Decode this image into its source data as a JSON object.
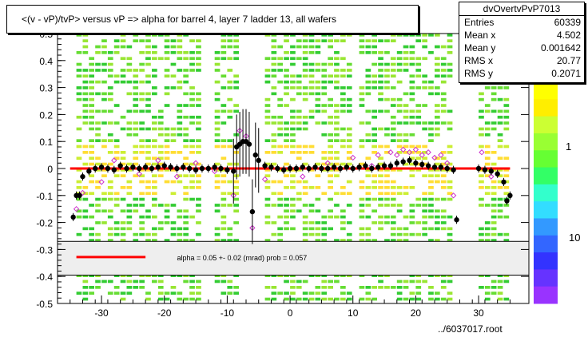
{
  "chart_data": {
    "type": "scatter",
    "title": "<(v - vP)/tvP> versus  vP => alpha for barrel 4, layer 7 ladder 13, all wafers",
    "xlim": [
      -37,
      38
    ],
    "ylim": [
      -0.5,
      0.5
    ],
    "x_ticks": [
      "-30",
      "-20",
      "-10",
      "0",
      "10",
      "20",
      "30"
    ],
    "x_tick_values": [
      -30,
      -20,
      -10,
      0,
      10,
      20,
      30
    ],
    "y_ticks": [
      "-0.5",
      "-0.4",
      "-0.3",
      "-0.2",
      "-0.1",
      "0",
      "0.1",
      "0.2",
      "0.3",
      "0.4",
      "0.5"
    ],
    "y_tick_values": [
      -0.5,
      -0.4,
      -0.3,
      -0.2,
      -0.1,
      0,
      0.1,
      0.2,
      0.3,
      0.4,
      0.5
    ],
    "color_scale_labels": [
      "1",
      "10"
    ],
    "colors": {
      "profile_points": "#000000",
      "open_markers": "#cc33cc",
      "fit_line": "#ff0000",
      "fill": "#33cc33"
    },
    "fill_bands_x": [
      [
        -34,
        -26
      ],
      [
        -26,
        -14
      ],
      [
        -12,
        -8
      ],
      [
        -4,
        10
      ],
      [
        11,
        16
      ],
      [
        16,
        26
      ],
      [
        30,
        35
      ]
    ],
    "series": [
      {
        "name": "profile",
        "x": [
          -34.5,
          -34,
          -33.5,
          -33,
          -32,
          -31,
          -30,
          -29,
          -28,
          -27,
          -26,
          -25,
          -24,
          -23,
          -22,
          -21,
          -20,
          -19,
          -18,
          -17,
          -16,
          -15,
          -14,
          -13,
          -12,
          -11,
          -10,
          -9,
          -8.5,
          -8,
          -7.5,
          -7,
          -6.5,
          -6,
          -5.5,
          -5,
          -4,
          -3,
          -2,
          -1,
          0,
          1,
          2,
          3,
          4,
          5,
          6,
          7,
          8,
          9,
          10,
          11,
          12,
          13,
          14,
          15,
          16,
          17,
          18,
          19,
          20,
          21,
          22,
          23,
          24,
          25,
          26,
          26.5,
          30,
          31,
          32,
          33,
          34,
          34.5,
          35
        ],
        "y": [
          -0.18,
          -0.1,
          -0.1,
          -0.03,
          -0.01,
          0.0,
          0.005,
          0.0,
          -0.005,
          0.01,
          0.0,
          0.005,
          0.0,
          0.005,
          0.0,
          0.005,
          0.01,
          0.005,
          0.0,
          0.005,
          0.0,
          -0.005,
          0.0,
          0.0,
          0.005,
          0.0,
          -0.005,
          -0.01,
          0.08,
          0.09,
          0.1,
          0.1,
          0.09,
          -0.16,
          0.05,
          0.03,
          0.01,
          0.005,
          0.0,
          -0.005,
          0.0,
          0.0,
          0.005,
          0.0,
          0.005,
          0.0,
          0.0,
          0.005,
          0.0,
          0.005,
          0.0,
          0.005,
          0.01,
          0.0,
          0.005,
          0.01,
          0.01,
          0.02,
          0.025,
          0.03,
          0.02,
          0.015,
          0.01,
          0.005,
          0.005,
          0.0,
          -0.005,
          -0.19,
          0.0,
          -0.005,
          -0.01,
          -0.02,
          -0.05,
          -0.12,
          -0.1
        ]
      },
      {
        "name": "open markers",
        "x": [
          -34,
          -33,
          -30,
          -28,
          -24,
          -21,
          -18,
          -15,
          -12,
          -9,
          -8,
          -7,
          -6,
          -4,
          2,
          6,
          10,
          13,
          14,
          16,
          17,
          18,
          19,
          20,
          21,
          22,
          23,
          24,
          25,
          26,
          30.5,
          32
        ],
        "y": [
          -0.15,
          -0.09,
          -0.05,
          0.03,
          -0.02,
          0.03,
          -0.03,
          0.02,
          -0.01,
          -0.1,
          0.14,
          0.12,
          -0.22,
          -0.04,
          -0.03,
          0.02,
          0.04,
          0.01,
          0.05,
          0.06,
          0.05,
          0.07,
          0.06,
          0.07,
          0.05,
          0.06,
          0.04,
          0.05,
          0.02,
          -0.1,
          0.06,
          -0.03
        ]
      }
    ],
    "fit": {
      "y": 0.0,
      "x_start": -35,
      "x_end": 35
    }
  },
  "stats": {
    "name": "dvOvertvPvP7013",
    "rows": [
      {
        "k": "Entries",
        "v": "60339"
      },
      {
        "k": "Mean x",
        "v": "4.502"
      },
      {
        "k": "Mean y",
        "v": "0.001642"
      },
      {
        "k": "RMS x",
        "v": "20.77"
      },
      {
        "k": "RMS y",
        "v": "0.2071"
      }
    ]
  },
  "legend": {
    "text": "alpha =     0.05 +-  0.02 (mrad) prob = 0.057"
  },
  "footer": "../6037017.root"
}
